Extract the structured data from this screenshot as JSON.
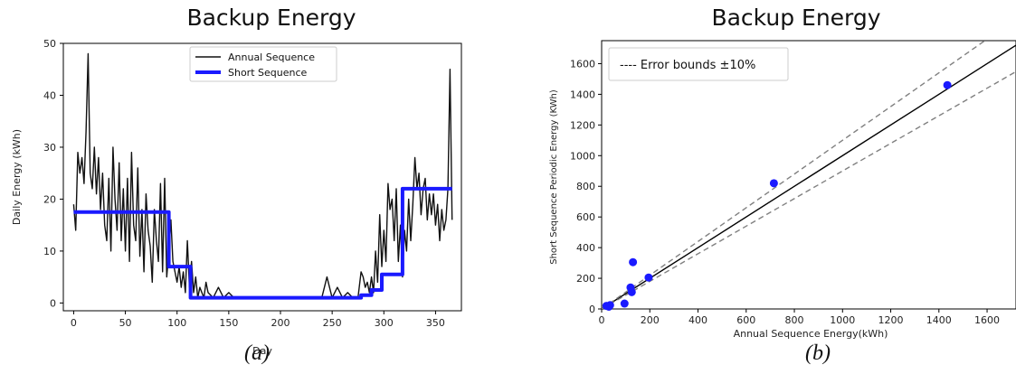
{
  "captions": {
    "a": "(a)",
    "b": "(b)"
  },
  "chart_data": [
    {
      "type": "line",
      "title": "Backup Energy",
      "xlabel": "Day",
      "ylabel": "Daily Energy (kWh)",
      "xlim": [
        -10,
        375
      ],
      "ylim": [
        -1.5,
        50
      ],
      "xticks": [
        0,
        50,
        100,
        150,
        200,
        250,
        300,
        350
      ],
      "yticks": [
        0,
        10,
        20,
        30,
        40,
        50
      ],
      "legend": {
        "position": "top-center",
        "entries": [
          "Annual Sequence",
          "Short Sequence"
        ]
      },
      "grid": false,
      "series": [
        {
          "name": "Annual Sequence",
          "color": "#111111",
          "x": [
            0,
            2,
            4,
            6,
            8,
            10,
            12,
            14,
            16,
            18,
            20,
            22,
            24,
            26,
            28,
            30,
            32,
            34,
            36,
            38,
            40,
            42,
            44,
            46,
            48,
            50,
            52,
            54,
            56,
            58,
            60,
            62,
            64,
            66,
            68,
            70,
            72,
            74,
            76,
            78,
            80,
            82,
            84,
            86,
            88,
            90,
            92,
            94,
            96,
            98,
            100,
            102,
            104,
            106,
            108,
            110,
            112,
            114,
            116,
            118,
            120,
            122,
            124,
            126,
            128,
            130,
            135,
            140,
            145,
            150,
            155,
            160,
            170,
            180,
            190,
            200,
            210,
            220,
            230,
            240,
            245,
            250,
            255,
            260,
            265,
            270,
            275,
            278,
            280,
            282,
            284,
            286,
            288,
            290,
            292,
            294,
            296,
            298,
            300,
            302,
            304,
            306,
            308,
            310,
            312,
            314,
            316,
            318,
            320,
            322,
            324,
            326,
            328,
            330,
            332,
            334,
            336,
            338,
            340,
            342,
            344,
            346,
            348,
            350,
            352,
            354,
            356,
            358,
            360,
            362,
            364,
            366
          ],
          "values": [
            19,
            14,
            29,
            25,
            28,
            23,
            33,
            48,
            25,
            22,
            30,
            21,
            28,
            18,
            25,
            15,
            12,
            24,
            10,
            30,
            20,
            14,
            27,
            12,
            22,
            10,
            24,
            8,
            29,
            15,
            12,
            26,
            9,
            18,
            6,
            21,
            14,
            11,
            4,
            18,
            12,
            8,
            23,
            6,
            24,
            5,
            10,
            16,
            8,
            6,
            4,
            7,
            3,
            6,
            2,
            12,
            3,
            8,
            2,
            5,
            1,
            3,
            2,
            1,
            4,
            2,
            1,
            3,
            1,
            2,
            1,
            1,
            1,
            1,
            1,
            1,
            1,
            1,
            1,
            1,
            5,
            1,
            3,
            1,
            2,
            1,
            1,
            6,
            5,
            3,
            4,
            2,
            5,
            2,
            10,
            4,
            17,
            7,
            14,
            8,
            23,
            18,
            20,
            12,
            22,
            8,
            15,
            5,
            14,
            10,
            20,
            12,
            19,
            28,
            22,
            25,
            17,
            22,
            24,
            16,
            21,
            17,
            21,
            15,
            19,
            12,
            18,
            14,
            16,
            22,
            45,
            16
          ]
        },
        {
          "name": "Short Sequence",
          "color": "#1a1aff",
          "step": true,
          "x": [
            0,
            92,
            92,
            113,
            113,
            278,
            278,
            288,
            288,
            298,
            298,
            318,
            318,
            366
          ],
          "values": [
            17.5,
            17.5,
            7,
            7,
            1,
            1,
            1.5,
            1.5,
            2.5,
            2.5,
            5.5,
            5.5,
            22,
            22
          ]
        }
      ]
    },
    {
      "type": "scatter",
      "title": "Backup Energy",
      "xlabel": "Annual Sequence Energy(kWh)",
      "ylabel": "Short Sequence Periodic Energy (KWh)",
      "xlim": [
        0,
        1720
      ],
      "ylim": [
        0,
        1750
      ],
      "xticks": [
        0,
        200,
        400,
        600,
        800,
        1000,
        1200,
        1400,
        1600
      ],
      "yticks": [
        0,
        200,
        400,
        600,
        800,
        1000,
        1200,
        1400,
        1600
      ],
      "legend": {
        "position": "top-left",
        "entries": [
          "---- Error bounds ±10%"
        ]
      },
      "grid": false,
      "series": [
        {
          "name": "",
          "color": "#1a1aff",
          "points": [
            [
              20,
              20
            ],
            [
              30,
              15
            ],
            [
              35,
              25
            ],
            [
              95,
              35
            ],
            [
              120,
              140
            ],
            [
              125,
              110
            ],
            [
              130,
              305
            ],
            [
              195,
              205
            ],
            [
              715,
              820
            ],
            [
              1435,
              1460
            ]
          ]
        }
      ],
      "reference_lines": [
        {
          "slope": 1.0,
          "style": "solid",
          "color": "#000000"
        },
        {
          "slope": 1.1,
          "style": "dashed",
          "color": "#808080"
        },
        {
          "slope": 0.9,
          "style": "dashed",
          "color": "#808080"
        }
      ]
    }
  ]
}
